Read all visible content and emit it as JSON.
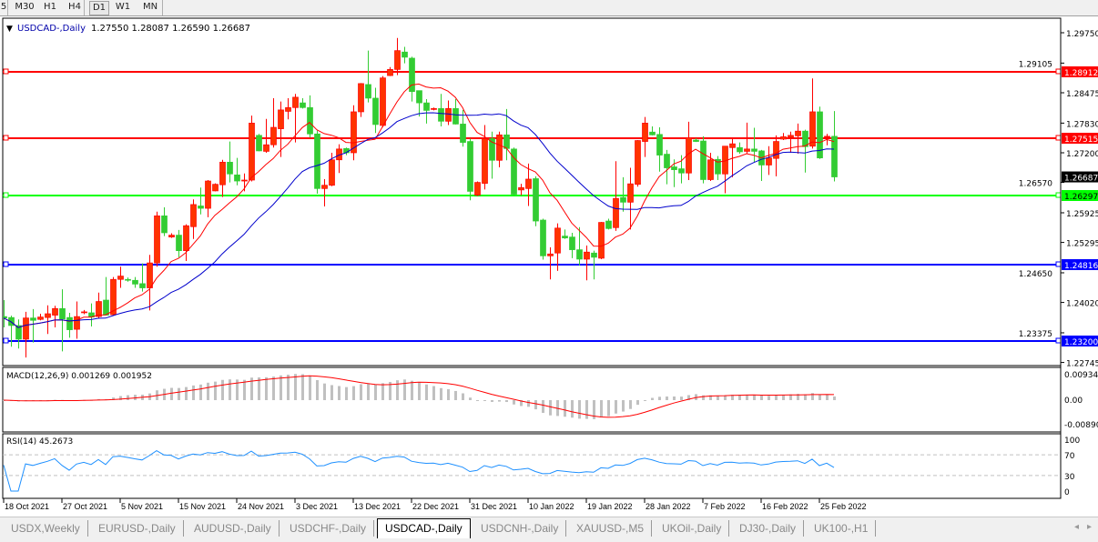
{
  "toolbar": {
    "timeframes": [
      {
        "label": "5",
        "active": false
      },
      {
        "label": "M30",
        "active": false
      },
      {
        "label": "H1",
        "active": false
      },
      {
        "label": "H4",
        "active": false
      },
      {
        "label": "D1",
        "active": true
      },
      {
        "label": "W1",
        "active": false
      },
      {
        "label": "MN",
        "active": false
      }
    ]
  },
  "tabs": [
    {
      "label": "USDX,Weekly",
      "active": false
    },
    {
      "label": "EURUSD-,Daily",
      "active": false
    },
    {
      "label": "AUDUSD-,Daily",
      "active": false
    },
    {
      "label": "USDCHF-,Daily",
      "active": false
    },
    {
      "label": "USDCAD-,Daily",
      "active": true
    },
    {
      "label": "USDCNH-,Daily",
      "active": false
    },
    {
      "label": "XAUUSD-,M5",
      "active": false
    },
    {
      "label": "UKOil-,Daily",
      "active": false
    },
    {
      "label": "DJ30-,Daily",
      "active": false
    },
    {
      "label": "UK100-,H1",
      "active": false
    }
  ],
  "tab_scroll": {
    "left_icon": "arrow-left-icon",
    "right_icon": "arrow-right-icon",
    "left": "◂",
    "right": "▸"
  },
  "colors": {
    "bull": "#ff3300",
    "bear": "#33cc33",
    "ma_fast": "#ff0000",
    "ma_slow": "#0000cc",
    "macd_hist": "#c0c0c0",
    "macd_signal": "#ff0000",
    "rsi": "#1e90ff"
  },
  "chart_data": {
    "type": "candlestick",
    "title": "USDCAD-,Daily",
    "ohlc_header": "1.27550 1.28087 1.26590 1.26687",
    "yticks": [
      "1.29750",
      "1.29105",
      "1.28475",
      "1.27830",
      "1.27200",
      "1.26570",
      "1.25925",
      "1.25295",
      "1.24650",
      "1.24020",
      "1.23375",
      "1.22745"
    ],
    "ylim": [
      1.226,
      1.3
    ],
    "current_price": "1.26687",
    "hlines": [
      {
        "value": "1.28912",
        "color": "#ff0000"
      },
      {
        "value": "1.27515",
        "color": "#ff0000"
      },
      {
        "value": "1.26297",
        "color": "#00ff00"
      },
      {
        "value": "1.24816",
        "color": "#0000ff"
      },
      {
        "value": "1.23200",
        "color": "#0000ff"
      }
    ],
    "date_labels": [
      "18 Oct 2021",
      "27 Oct 2021",
      "5 Nov 2021",
      "15 Nov 2021",
      "24 Nov 2021",
      "3 Dec 2021",
      "13 Dec 2021",
      "22 Dec 2021",
      "31 Dec 2021",
      "10 Jan 2022",
      "19 Jan 2022",
      "28 Jan 2022",
      "7 Feb 2022",
      "16 Feb 2022",
      "25 Feb 2022"
    ],
    "date_label_every_bars": 8,
    "candles_ohlc": [
      [
        1.2372,
        1.2407,
        1.2349,
        1.2369
      ],
      [
        1.237,
        1.2374,
        1.2308,
        1.2353
      ],
      [
        1.2353,
        1.2366,
        1.2304,
        1.2324
      ],
      [
        1.2324,
        1.2382,
        1.2285,
        1.2369
      ],
      [
        1.2369,
        1.2388,
        1.2317,
        1.2364
      ],
      [
        1.2366,
        1.2378,
        1.2364,
        1.2371
      ],
      [
        1.237,
        1.2396,
        1.2335,
        1.2378
      ],
      [
        1.2375,
        1.2395,
        1.2349,
        1.2389
      ],
      [
        1.2389,
        1.243,
        1.2298,
        1.2367
      ],
      [
        1.237,
        1.238,
        1.2327,
        1.2344
      ],
      [
        1.2345,
        1.2404,
        1.2325,
        1.2372
      ],
      [
        1.2381,
        1.2386,
        1.2377,
        1.2382
      ],
      [
        1.238,
        1.24,
        1.2351,
        1.2371
      ],
      [
        1.2372,
        1.2423,
        1.2369,
        1.2404
      ],
      [
        1.2407,
        1.2456,
        1.2375,
        1.2375
      ],
      [
        1.2376,
        1.2456,
        1.2375,
        1.2451
      ],
      [
        1.2451,
        1.2478,
        1.2433,
        1.2458
      ],
      [
        1.2451,
        1.2455,
        1.2446,
        1.245
      ],
      [
        1.2449,
        1.2456,
        1.2433,
        1.2441
      ],
      [
        1.2442,
        1.2485,
        1.2425,
        1.2433
      ],
      [
        1.2433,
        1.2503,
        1.2385,
        1.2486
      ],
      [
        1.2486,
        1.2595,
        1.2478,
        1.2586
      ],
      [
        1.2586,
        1.2604,
        1.2543,
        1.255
      ],
      [
        1.2541,
        1.2549,
        1.2539,
        1.2545
      ],
      [
        1.2545,
        1.2556,
        1.2498,
        1.2512
      ],
      [
        1.2512,
        1.2568,
        1.249,
        1.2565
      ],
      [
        1.2563,
        1.2621,
        1.2537,
        1.261
      ],
      [
        1.2607,
        1.2646,
        1.2589,
        1.2602
      ],
      [
        1.2602,
        1.2662,
        1.2583,
        1.266
      ],
      [
        1.2639,
        1.2655,
        1.2638,
        1.2653
      ],
      [
        1.2652,
        1.2705,
        1.2626,
        1.27
      ],
      [
        1.27,
        1.2744,
        1.2657,
        1.2675
      ],
      [
        1.2673,
        1.2709,
        1.2651,
        1.266
      ],
      [
        1.266,
        1.2676,
        1.2638,
        1.2662
      ],
      [
        1.2662,
        1.2799,
        1.2659,
        1.2783
      ],
      [
        1.2757,
        1.276,
        1.2723,
        1.2724
      ],
      [
        1.2723,
        1.2792,
        1.272,
        1.2737
      ],
      [
        1.2737,
        1.2836,
        1.2731,
        1.2774
      ],
      [
        1.2771,
        1.2829,
        1.2711,
        1.2811
      ],
      [
        1.2808,
        1.2836,
        1.2791,
        1.2816
      ],
      [
        1.2816,
        1.2845,
        1.2742,
        1.2838
      ],
      [
        1.2826,
        1.2836,
        1.2814,
        1.2816
      ],
      [
        1.2816,
        1.2842,
        1.2752,
        1.276
      ],
      [
        1.276,
        1.2767,
        1.2633,
        1.2644
      ],
      [
        1.2644,
        1.2664,
        1.2606,
        1.2651
      ],
      [
        1.2651,
        1.272,
        1.2649,
        1.2705
      ],
      [
        1.2705,
        1.2738,
        1.2677,
        1.2728
      ],
      [
        1.2729,
        1.2731,
        1.2715,
        1.272
      ],
      [
        1.272,
        1.2821,
        1.2704,
        1.2807
      ],
      [
        1.2807,
        1.2868,
        1.2796,
        1.2867
      ],
      [
        1.2865,
        1.2937,
        1.2827,
        1.2836
      ],
      [
        1.2836,
        1.2858,
        1.2762,
        1.278
      ],
      [
        1.2778,
        1.2883,
        1.2774,
        1.2879
      ],
      [
        1.2884,
        1.2902,
        1.2883,
        1.2897
      ],
      [
        1.2897,
        1.2964,
        1.2885,
        1.2937
      ],
      [
        1.2934,
        1.2945,
        1.291,
        1.2923
      ],
      [
        1.2921,
        1.2924,
        1.2829,
        1.285
      ],
      [
        1.2852,
        1.2852,
        1.2797,
        1.2826
      ],
      [
        1.2826,
        1.2834,
        1.2782,
        1.281
      ],
      [
        1.2812,
        1.2816,
        1.281,
        1.2814
      ],
      [
        1.2814,
        1.2845,
        1.2776,
        1.2787
      ],
      [
        1.2787,
        1.2831,
        1.2779,
        1.2814
      ],
      [
        1.2814,
        1.2834,
        1.278,
        1.2781
      ],
      [
        1.2781,
        1.2811,
        1.2733,
        1.2742
      ],
      [
        1.2744,
        1.275,
        1.2619,
        1.2638
      ],
      [
        1.263,
        1.2659,
        1.2628,
        1.2657
      ],
      [
        1.2655,
        1.2779,
        1.2642,
        1.275
      ],
      [
        1.275,
        1.2765,
        1.2665,
        1.2704
      ],
      [
        1.2704,
        1.2765,
        1.2689,
        1.2758
      ],
      [
        1.2758,
        1.2813,
        1.2704,
        1.2729
      ],
      [
        1.2728,
        1.2731,
        1.263,
        1.2632
      ],
      [
        1.2641,
        1.2654,
        1.263,
        1.2646
      ],
      [
        1.2644,
        1.2697,
        1.2607,
        1.2664
      ],
      [
        1.2665,
        1.267,
        1.2564,
        1.2575
      ],
      [
        1.2577,
        1.258,
        1.2493,
        1.2501
      ],
      [
        1.2501,
        1.2519,
        1.2451,
        1.2505
      ],
      [
        1.2507,
        1.257,
        1.2469,
        1.256
      ],
      [
        1.2543,
        1.2557,
        1.2537,
        1.2539
      ],
      [
        1.2541,
        1.255,
        1.2496,
        1.2514
      ],
      [
        1.2514,
        1.2562,
        1.2481,
        1.2494
      ],
      [
        1.2494,
        1.2523,
        1.2449,
        1.2509
      ],
      [
        1.2507,
        1.2512,
        1.2451,
        1.2498
      ],
      [
        1.2496,
        1.2573,
        1.2494,
        1.2572
      ],
      [
        1.2575,
        1.258,
        1.2557,
        1.2559
      ],
      [
        1.2561,
        1.2702,
        1.2554,
        1.2623
      ],
      [
        1.2625,
        1.2668,
        1.2595,
        1.2615
      ],
      [
        1.2615,
        1.2688,
        1.2557,
        1.2654
      ],
      [
        1.2653,
        1.2747,
        1.2648,
        1.2746
      ],
      [
        1.2744,
        1.2796,
        1.2711,
        1.2783
      ],
      [
        1.2764,
        1.2776,
        1.2757,
        1.2758
      ],
      [
        1.2759,
        1.2774,
        1.268,
        1.2715
      ],
      [
        1.2717,
        1.2726,
        1.2653,
        1.2688
      ],
      [
        1.269,
        1.2706,
        1.2647,
        1.2684
      ],
      [
        1.2686,
        1.2715,
        1.2655,
        1.2677
      ],
      [
        1.2677,
        1.2786,
        1.2662,
        1.2752
      ],
      [
        1.2747,
        1.2751,
        1.2743,
        1.2744
      ],
      [
        1.2745,
        1.2755,
        1.2655,
        1.2663
      ],
      [
        1.2663,
        1.272,
        1.266,
        1.2705
      ],
      [
        1.2706,
        1.2713,
        1.2662,
        1.2675
      ],
      [
        1.2675,
        1.2734,
        1.2634,
        1.2734
      ],
      [
        1.2731,
        1.2749,
        1.2668,
        1.2739
      ],
      [
        1.2731,
        1.2742,
        1.2718,
        1.2722
      ],
      [
        1.2723,
        1.2784,
        1.2717,
        1.2728
      ],
      [
        1.2728,
        1.2773,
        1.27,
        1.2723
      ],
      [
        1.2724,
        1.2726,
        1.266,
        1.2694
      ],
      [
        1.2694,
        1.2734,
        1.2673,
        1.2709
      ],
      [
        1.2708,
        1.2757,
        1.267,
        1.2744
      ],
      [
        1.2749,
        1.2762,
        1.2747,
        1.2754
      ],
      [
        1.2753,
        1.2765,
        1.272,
        1.2757
      ],
      [
        1.2756,
        1.2782,
        1.2718,
        1.2766
      ],
      [
        1.2766,
        1.2769,
        1.2678,
        1.2733
      ],
      [
        1.2734,
        1.2878,
        1.2729,
        1.2807
      ],
      [
        1.2807,
        1.2818,
        1.2707,
        1.2709
      ],
      [
        1.2754,
        1.276,
        1.2736,
        1.2755
      ],
      [
        1.2755,
        1.28087,
        1.2659,
        1.26687
      ]
    ],
    "macd": {
      "label": "MACD(12,26,9) 0.001269 0.001952",
      "yticks": [
        "0.009345",
        "0.00",
        "-0.008902"
      ],
      "ylim": [
        -0.0089,
        0.009345
      ]
    },
    "rsi": {
      "label": "RSI(14) 45.2673",
      "yticks": [
        "100",
        "70",
        "30",
        "0"
      ],
      "levels": [
        70,
        30
      ],
      "ylim": [
        0,
        100
      ]
    }
  }
}
